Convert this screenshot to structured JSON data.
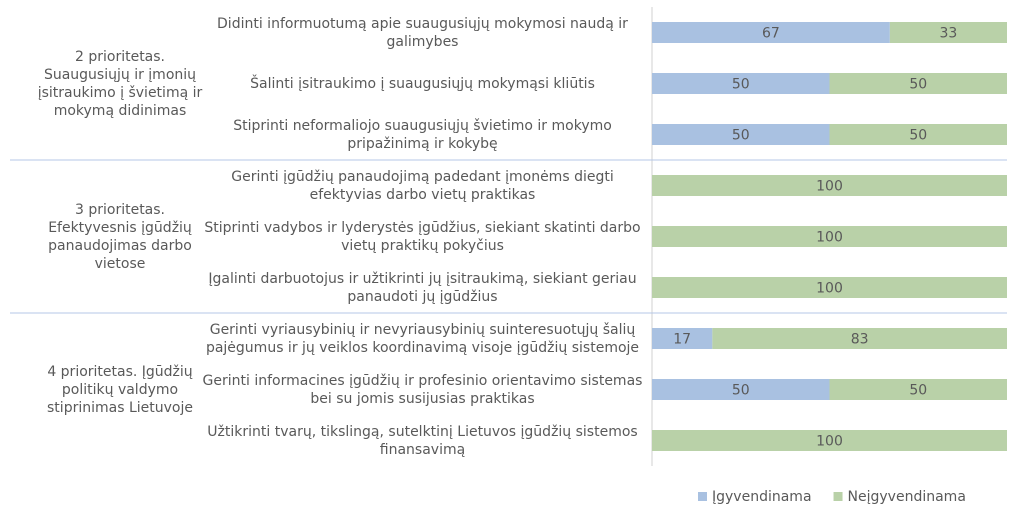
{
  "chart_data": {
    "type": "bar",
    "orientation": "horizontal",
    "stacked": true,
    "groups": [
      {
        "label": "2 prioritetas. Suaugusiųjų ir įmonių įsitraukimo į švietimą ir mokymą didinimas"
      },
      {
        "label": "3 prioritetas. Efektyvesnis įgūdžių panaudojimas darbo vietose"
      },
      {
        "label": "4 prioritetas. Įgūdžių politikų valdymo stiprinimas Lietuvoje"
      }
    ],
    "categories": [
      "Didinti informuotumą apie suaugusiųjų mokymosi naudą ir galimybes",
      "Šalinti įsitraukimo į suaugusiųjų mokymąsi kliūtis",
      "Stiprinti neformaliojo suaugusiųjų švietimo ir mokymo pripažinimą ir kokybę",
      "Gerinti įgūdžių panaudojimą padedant įmonėms diegti efektyvias darbo vietų praktikas",
      "Stiprinti vadybos ir lyderystės įgūdžius, siekiant skatinti darbo vietų praktikų pokyčius",
      "Įgalinti darbuotojus ir užtikrinti jų įsitraukimą, siekiant geriau panaudoti jų įgūdžius",
      "Gerinti vyriausybinių ir nevyriausybinių suinteresuotųjų šalių pajėgumus ir jų veiklos koordinavimą visoje įgūdžių sistemoje",
      "Gerinti informacines įgūdžių ir profesinio orientavimo sistemas bei su jomis susijusias praktikas",
      "Užtikrinti tvarų, tikslingą, sutelktinį Lietuvos įgūdžių sistemos finansavimą"
    ],
    "series": [
      {
        "name": "Įgyvendinama",
        "color": "#a9c1e1",
        "values": [
          67,
          50,
          50,
          0,
          0,
          0,
          17,
          50,
          0
        ]
      },
      {
        "name": "Neįgyvendinama",
        "color": "#b9d1a8",
        "values": [
          33,
          50,
          50,
          100,
          100,
          100,
          83,
          50,
          100
        ]
      }
    ],
    "xlim": [
      0,
      100
    ]
  }
}
